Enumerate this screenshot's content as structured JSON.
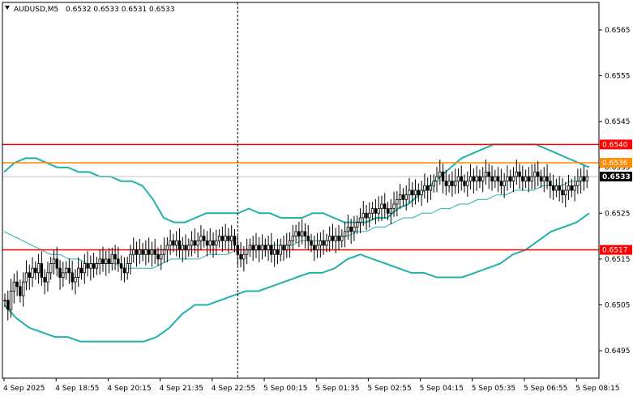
{
  "title": {
    "symbol": "AUDUSD,M5",
    "ohlc": "0.6532 0.6533 0.6531 0.6533"
  },
  "colors": {
    "background": "#ffffff",
    "candle": "#000000",
    "bollinger": "#20b2aa",
    "moving_average": "#20b2aa",
    "support_resistance": "#ff0000",
    "orange_level": "#ff8c00",
    "current_price_line": "#c0c0c0"
  },
  "chart_data": {
    "type": "candlestick",
    "ylim": [
      0.6489,
      0.6571
    ],
    "y_ticks": [
      "0.6565",
      "0.6555",
      "0.6545",
      "0.6535",
      "0.6525",
      "0.6515",
      "0.6505",
      "0.6495"
    ],
    "x_tick_labels": [
      "4 Sep 2025",
      "4 Sep 18:55",
      "4 Sep 20:15",
      "4 Sep 21:35",
      "4 Sep 22:55",
      "5 Sep 00:15",
      "5 Sep 01:35",
      "5 Sep 02:55",
      "5 Sep 04:15",
      "5 Sep 05:35",
      "5 Sep 06:55",
      "5 Sep 08:15"
    ],
    "levels": [
      {
        "label": "0.6540",
        "value": 0.654,
        "color": "#ff0000"
      },
      {
        "label": "0.6536",
        "value": 0.6536,
        "color": "#ff8c00"
      },
      {
        "label": "0.6517",
        "value": 0.6517,
        "color": "#ff0000"
      }
    ],
    "current_price": {
      "label": "0.6533",
      "value": 0.6533
    },
    "day_separator_index": 76,
    "close": [
      0.6506,
      0.6504,
      0.6508,
      0.651,
      0.6509,
      0.6507,
      0.651,
      0.6512,
      0.6511,
      0.6513,
      0.6512,
      0.6514,
      0.6511,
      0.651,
      0.6512,
      0.6514,
      0.6515,
      0.6513,
      0.6511,
      0.6512,
      0.6513,
      0.6512,
      0.651,
      0.6511,
      0.6513,
      0.6512,
      0.6514,
      0.6513,
      0.6514,
      0.6513,
      0.6514,
      0.6515,
      0.6514,
      0.6515,
      0.6514,
      0.6516,
      0.6515,
      0.6514,
      0.6513,
      0.6512,
      0.6514,
      0.6516,
      0.6517,
      0.6516,
      0.6517,
      0.6516,
      0.6517,
      0.6516,
      0.6517,
      0.6516,
      0.6515,
      0.6516,
      0.6517,
      0.6518,
      0.6519,
      0.6518,
      0.6519,
      0.6517,
      0.6518,
      0.6517,
      0.6518,
      0.6519,
      0.6518,
      0.6519,
      0.652,
      0.6519,
      0.6518,
      0.6519,
      0.6518,
      0.6519,
      0.652,
      0.6519,
      0.652,
      0.6519,
      0.652,
      0.6518,
      0.6516,
      0.6515,
      0.6516,
      0.6517,
      0.6518,
      0.6517,
      0.6518,
      0.6517,
      0.6518,
      0.6517,
      0.6518,
      0.6516,
      0.6517,
      0.6516,
      0.6518,
      0.6517,
      0.6518,
      0.6519,
      0.652,
      0.6521,
      0.652,
      0.6521,
      0.652,
      0.6519,
      0.6518,
      0.6517,
      0.6518,
      0.6519,
      0.6518,
      0.6519,
      0.652,
      0.6519,
      0.652,
      0.6519,
      0.652,
      0.6521,
      0.6522,
      0.6521,
      0.6522,
      0.6523,
      0.6524,
      0.6525,
      0.6524,
      0.6525,
      0.6526,
      0.6525,
      0.6526,
      0.6527,
      0.6526,
      0.6525,
      0.6526,
      0.6527,
      0.6528,
      0.6529,
      0.6528,
      0.6529,
      0.653,
      0.6529,
      0.653,
      0.6529,
      0.653,
      0.6531,
      0.653,
      0.6531,
      0.6532,
      0.6533,
      0.6534,
      0.6532,
      0.6531,
      0.6532,
      0.6531,
      0.6532,
      0.6533,
      0.6532,
      0.6531,
      0.6532,
      0.6533,
      0.6532,
      0.6533,
      0.6532,
      0.6533,
      0.6534,
      0.6533,
      0.6532,
      0.6533,
      0.6532,
      0.6531,
      0.6532,
      0.6533,
      0.6532,
      0.6533,
      0.6534,
      0.6533,
      0.6532,
      0.6533,
      0.6532,
      0.6533,
      0.6534,
      0.6533,
      0.6532,
      0.6533,
      0.6532,
      0.6531,
      0.653,
      0.6531,
      0.653,
      0.6529,
      0.653,
      0.6531,
      0.653,
      0.6531,
      0.6532,
      0.6533,
      0.6532,
      0.6533
    ],
    "ma": [
      0.6521,
      0.652,
      0.6519,
      0.6518,
      0.6517,
      0.6516,
      0.6516,
      0.6515,
      0.6515,
      0.6514,
      0.6514,
      0.6514,
      0.6514,
      0.6513,
      0.6513,
      0.6513,
      0.6513,
      0.6514,
      0.6515,
      0.6515,
      0.6515,
      0.6515,
      0.6516,
      0.6516,
      0.6516,
      0.6517,
      0.6517,
      0.6517,
      0.6518,
      0.6518,
      0.6518,
      0.6518,
      0.6519,
      0.6519,
      0.6519,
      0.6519,
      0.652,
      0.652,
      0.6521,
      0.6521,
      0.6522,
      0.6522,
      0.6523,
      0.6524,
      0.6524,
      0.6525,
      0.6525,
      0.6526,
      0.6526,
      0.6527,
      0.6527,
      0.6528,
      0.6528,
      0.6529,
      0.6529,
      0.653,
      0.653,
      0.653,
      0.6531,
      0.6531,
      0.6531,
      0.6532,
      0.6532,
      0.6533
    ],
    "bb_upper": [
      0.6534,
      0.6536,
      0.6537,
      0.6537,
      0.6536,
      0.6535,
      0.6535,
      0.6534,
      0.6534,
      0.6533,
      0.6533,
      0.6532,
      0.6532,
      0.6531,
      0.6528,
      0.6524,
      0.6523,
      0.6523,
      0.6524,
      0.6525,
      0.6525,
      0.6525,
      0.6525,
      0.6526,
      0.6525,
      0.6525,
      0.6524,
      0.6524,
      0.6524,
      0.6525,
      0.6525,
      0.6524,
      0.6523,
      0.6523,
      0.6523,
      0.6524,
      0.6524,
      0.6526,
      0.6527,
      0.6529,
      0.6531,
      0.6533,
      0.6535,
      0.6537,
      0.6538,
      0.6539,
      0.654,
      0.654,
      0.654,
      0.654,
      0.654,
      0.6539,
      0.6538,
      0.6537,
      0.6536,
      0.6535
    ],
    "bb_lower": [
      0.6505,
      0.6502,
      0.65,
      0.6499,
      0.6498,
      0.6498,
      0.6497,
      0.6497,
      0.6497,
      0.6497,
      0.6497,
      0.6497,
      0.6498,
      0.65,
      0.6503,
      0.6505,
      0.6505,
      0.6506,
      0.6507,
      0.6508,
      0.6508,
      0.6509,
      0.651,
      0.6511,
      0.6512,
      0.6512,
      0.6513,
      0.6515,
      0.6516,
      0.6515,
      0.6514,
      0.6513,
      0.6512,
      0.6512,
      0.6511,
      0.6511,
      0.6511,
      0.6512,
      0.6513,
      0.6514,
      0.6516,
      0.6517,
      0.6519,
      0.6521,
      0.6522,
      0.6523,
      0.6525
    ]
  }
}
